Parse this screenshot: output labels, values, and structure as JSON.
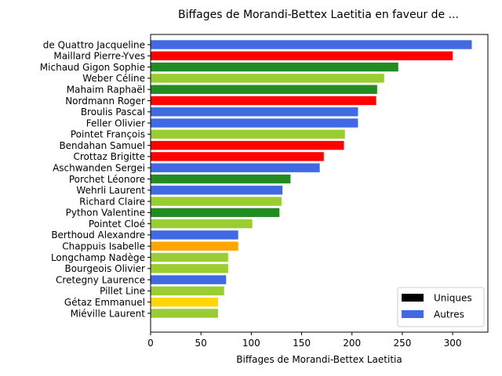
{
  "chart_data": {
    "type": "bar",
    "orientation": "horizontal",
    "title": "Biffages de Morandi-Bettex Laetitia en faveur de ...",
    "xlabel": "Biffages de Morandi-Bettex Laetitia",
    "ylabel": "",
    "xlim": [
      0,
      335
    ],
    "xticks": [
      0,
      50,
      100,
      150,
      200,
      250,
      300
    ],
    "grid": false,
    "legend_position": "lower-right",
    "legend": [
      {
        "label": "Uniques",
        "color": "#000000"
      },
      {
        "label": "Autres",
        "color": "#4169e1"
      }
    ],
    "bars": [
      {
        "label": "de Quattro Jacqueline",
        "value": 319,
        "color": "#4169e1"
      },
      {
        "label": "Maillard Pierre-Yves",
        "value": 300,
        "color": "#ff0000"
      },
      {
        "label": "Michaud Gigon Sophie",
        "value": 246,
        "color": "#228b22"
      },
      {
        "label": "Weber Céline",
        "value": 232,
        "color": "#9acd32"
      },
      {
        "label": "Mahaim Raphaël",
        "value": 225,
        "color": "#228b22"
      },
      {
        "label": "Nordmann Roger",
        "value": 224,
        "color": "#ff0000"
      },
      {
        "label": "Broulis Pascal",
        "value": 206,
        "color": "#4169e1"
      },
      {
        "label": "Feller Olivier",
        "value": 206,
        "color": "#4169e1"
      },
      {
        "label": "Pointet François",
        "value": 193,
        "color": "#9acd32"
      },
      {
        "label": "Bendahan Samuel",
        "value": 192,
        "color": "#ff0000"
      },
      {
        "label": "Crottaz Brigitte",
        "value": 172,
        "color": "#ff0000"
      },
      {
        "label": "Aschwanden Sergei",
        "value": 168,
        "color": "#4169e1"
      },
      {
        "label": "Porchet Léonore",
        "value": 139,
        "color": "#228b22"
      },
      {
        "label": "Wehrli Laurent",
        "value": 131,
        "color": "#4169e1"
      },
      {
        "label": "Richard Claire",
        "value": 130,
        "color": "#9acd32"
      },
      {
        "label": "Python Valentine",
        "value": 128,
        "color": "#228b22"
      },
      {
        "label": "Pointet Cloé",
        "value": 101,
        "color": "#9acd32"
      },
      {
        "label": "Berthoud Alexandre",
        "value": 87,
        "color": "#4169e1"
      },
      {
        "label": "Chappuis Isabelle",
        "value": 87,
        "color": "#ffa500"
      },
      {
        "label": "Longchamp Nadège",
        "value": 77,
        "color": "#9acd32"
      },
      {
        "label": "Bourgeois Olivier",
        "value": 77,
        "color": "#9acd32"
      },
      {
        "label": "Cretegny Laurence",
        "value": 75,
        "color": "#4169e1"
      },
      {
        "label": "Pillet Line",
        "value": 73,
        "color": "#9acd32"
      },
      {
        "label": "Gétaz Emmanuel",
        "value": 67,
        "color": "#ffd700"
      },
      {
        "label": "Miéville Laurent",
        "value": 67,
        "color": "#9acd32"
      }
    ]
  }
}
